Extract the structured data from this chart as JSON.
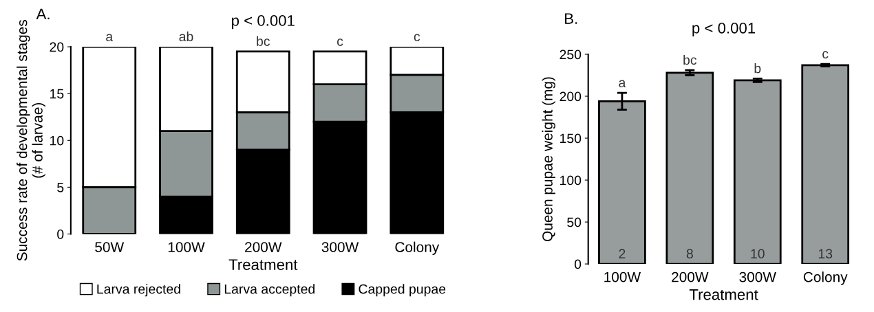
{
  "chart_data": [
    {
      "type": "bar",
      "stacked": true,
      "title": "p < 0.001",
      "xlabel": "Treatment",
      "ylabel": "Success rate of developmental stages\n(# of larvae)",
      "categories": [
        "50W",
        "100W",
        "200W",
        "300W",
        "Colony"
      ],
      "series": [
        {
          "name": "Capped pupae",
          "color": "#000000",
          "values": [
            0,
            4,
            9,
            12,
            13
          ]
        },
        {
          "name": "Larva accepted",
          "color": "#8f9696",
          "values": [
            5,
            7,
            4,
            4,
            4
          ]
        },
        {
          "name": "Larva rejected",
          "color": "#ffffff",
          "values": [
            15,
            9,
            6.5,
            3.5,
            3
          ]
        }
      ],
      "ylim": [
        0,
        20
      ],
      "yticks": [
        0,
        5,
        10,
        15,
        20
      ],
      "grid": false,
      "legend": "bottom",
      "annotations": [
        "A.",
        {
          "text": "a",
          "x": "50W",
          "y": 20
        },
        {
          "text": "ab",
          "x": "100W",
          "y": 20
        },
        {
          "text": "bc",
          "x": "200W",
          "y": 19.5
        },
        {
          "text": "c",
          "x": "300W",
          "y": 19.5
        },
        {
          "text": "c",
          "x": "Colony",
          "y": 20
        }
      ]
    },
    {
      "type": "bar",
      "title": "p < 0.001",
      "xlabel": "Treatment",
      "ylabel": "Queen pupae weight (mg)",
      "categories": [
        "100W",
        "200W",
        "300W",
        "Colony"
      ],
      "values": [
        194,
        228,
        219,
        237
      ],
      "errors": [
        10,
        3,
        2,
        1.5
      ],
      "color": "#979d9d",
      "ylim": [
        0,
        250
      ],
      "yticks": [
        0,
        50,
        100,
        150,
        200,
        250
      ],
      "grid": false,
      "annotations": [
        "B.",
        {
          "text": "a",
          "x": "100W",
          "y": 204
        },
        {
          "text": "bc",
          "x": "200W",
          "y": 231
        },
        {
          "text": "b",
          "x": "300W",
          "y": 221
        },
        {
          "text": "c",
          "x": "Colony",
          "y": 238.5
        },
        {
          "text": "2",
          "x": "100W",
          "y": 0
        },
        {
          "text": "8",
          "x": "200W",
          "y": 0
        },
        {
          "text": "10",
          "x": "300W",
          "y": 0
        },
        {
          "text": "13",
          "x": "Colony",
          "y": 0
        }
      ]
    }
  ]
}
